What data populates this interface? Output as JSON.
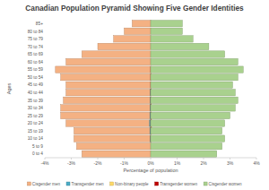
{
  "chart_data": {
    "type": "bar",
    "orientation": "horizontal",
    "stacked": false,
    "grid": false,
    "legend": "bottom",
    "title": "Canadian Population Pyramid Showing Five Gender Identities",
    "x_label": "Percentage of population",
    "y_label": "Ages",
    "categories": [
      "0 to 4",
      "5 to 9",
      "10 to 14",
      "15 to 19",
      "20 to 24",
      "25 to 29",
      "30 to 34",
      "35 to 39",
      "40 to 44",
      "45 to 49",
      "50 to 54",
      "55 to 59",
      "60 to 64",
      "65 to 69",
      "70 to 74",
      "75 to 79",
      "80 to 84",
      "85+"
    ],
    "xlim": [
      -4,
      4
    ],
    "xticks": [
      {
        "value": -4,
        "label": "-4%"
      },
      {
        "value": -3,
        "label": "-3%"
      },
      {
        "value": -2,
        "label": "-2%"
      },
      {
        "value": -1,
        "label": "-1%"
      },
      {
        "value": 0,
        "label": "0%"
      },
      {
        "value": 1,
        "label": "1%"
      },
      {
        "value": 2,
        "label": "2%"
      },
      {
        "value": 3,
        "label": "3%"
      },
      {
        "value": 4,
        "label": "4%"
      }
    ],
    "series": [
      {
        "name": "Cisgender men",
        "color": "#f4b183",
        "values": [
          -2.6,
          -2.8,
          -2.9,
          -2.9,
          -3.2,
          -3.4,
          -3.4,
          -3.3,
          -3.2,
          -3.2,
          -3.4,
          -3.6,
          -3.2,
          -2.6,
          -2.0,
          -1.4,
          -1.0,
          -0.7
        ]
      },
      {
        "name": "Transgender men",
        "color": "#4bacc6",
        "values": [
          0,
          0,
          -0.01,
          -0.03,
          -0.04,
          -0.03,
          -0.02,
          -0.01,
          -0.01,
          0,
          0,
          0,
          0,
          0,
          0,
          0,
          0,
          0
        ]
      },
      {
        "name": "Non-binary people",
        "color": "#ffd966",
        "values": [
          0,
          0,
          0.01,
          0.04,
          0.05,
          0.03,
          0.02,
          0.01,
          0.01,
          0,
          0,
          0,
          0,
          0,
          0,
          0,
          0,
          0
        ]
      },
      {
        "name": "Transgender women",
        "color": "#c00000",
        "values": [
          0,
          0,
          0.01,
          0.02,
          0.03,
          0.03,
          0.02,
          0.02,
          0.01,
          0.01,
          0.01,
          0.01,
          0,
          0,
          0,
          0,
          0,
          0
        ]
      },
      {
        "name": "Cisgender women",
        "color": "#a9d18e",
        "values": [
          2.5,
          2.7,
          2.8,
          2.7,
          2.8,
          3.0,
          3.2,
          3.3,
          3.2,
          3.1,
          3.3,
          3.5,
          3.3,
          2.8,
          2.2,
          1.6,
          1.2,
          1.2
        ]
      }
    ]
  }
}
